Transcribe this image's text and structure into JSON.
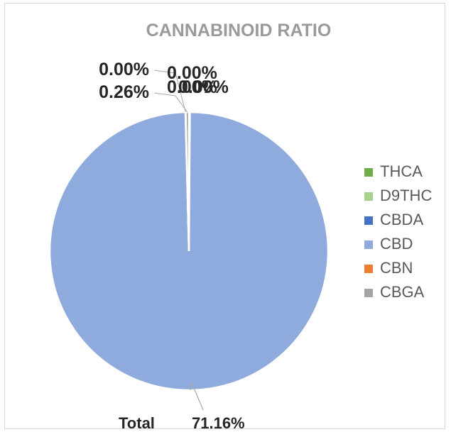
{
  "chart_data": {
    "type": "pie",
    "title": "CANNABINOID RATIO",
    "categories": [
      "THCA",
      "D9THC",
      "CBDA",
      "CBD",
      "CBN",
      "CBGA"
    ],
    "values": [
      0.0,
      0.0,
      0.0,
      71.16,
      0.0,
      0.26
    ],
    "data_labels": [
      "0.00%",
      "0.00%",
      "0.00%",
      "71.16%",
      "0.00%",
      "0.26%"
    ],
    "colors": [
      "#70ad47",
      "#a9d18e",
      "#4472c4",
      "#8faadc",
      "#ed7d31",
      "#a5a5a5"
    ],
    "legend": {
      "position": "right",
      "entries": [
        "THCA",
        "D9THC",
        "CBDA",
        "CBD",
        "CBN",
        "CBGA"
      ]
    },
    "footer": {
      "label": "Total",
      "value": "71.16%"
    }
  }
}
